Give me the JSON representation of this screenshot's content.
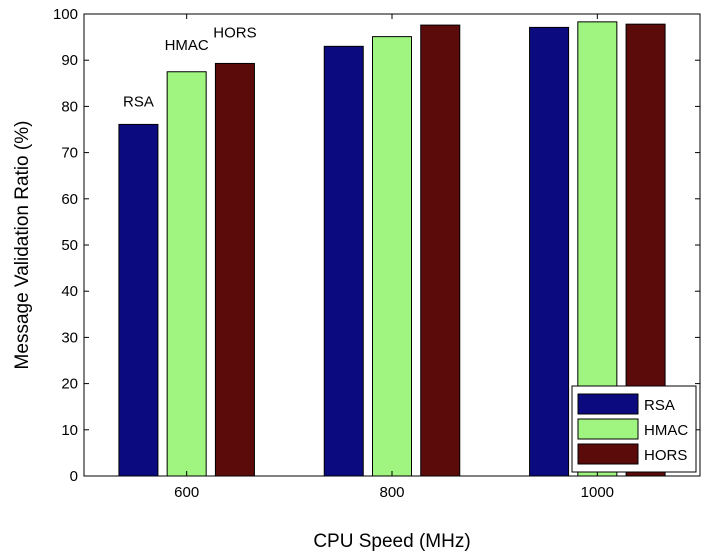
{
  "chart_data": {
    "type": "bar",
    "categories": [
      "600",
      "800",
      "1000"
    ],
    "series": [
      {
        "name": "RSA",
        "color": "#0b0b7f",
        "values": [
          76.1,
          93.0,
          97.1
        ]
      },
      {
        "name": "HMAC",
        "color": "#9ff57f",
        "values": [
          87.5,
          95.1,
          98.3
        ]
      },
      {
        "name": "HORS",
        "color": "#5c0b0b",
        "values": [
          89.3,
          97.6,
          97.8
        ]
      }
    ],
    "xlabel": "CPU Speed (MHz)",
    "ylabel": "Message Validation Ratio (%)",
    "ylim": [
      0,
      100
    ],
    "yticks": [
      0,
      10,
      20,
      30,
      40,
      50,
      60,
      70,
      80,
      90,
      100
    ],
    "grid": false,
    "legend": {
      "position": "bottom-right",
      "labels": [
        "RSA",
        "HMAC",
        "HORS"
      ]
    },
    "annotations": [
      {
        "text": "RSA",
        "category": "600",
        "series": "RSA"
      },
      {
        "text": "HMAC",
        "category": "600",
        "series": "HMAC"
      },
      {
        "text": "HORS",
        "category": "600",
        "series": "HORS"
      }
    ]
  }
}
